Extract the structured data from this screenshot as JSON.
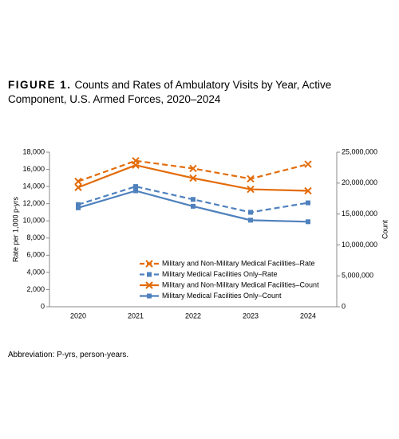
{
  "chart_data": {
    "type": "line",
    "figure_label": "FIGURE 1.",
    "title": "Counts and Rates of Ambulatory Visits by Year, Active Component, U.S. Armed Forces, 2020–2024",
    "note": "Abbreviation: P-yrs, person-years.",
    "y_label": "Rate per 1,000 p-yrs",
    "y2_label": "Count",
    "categories": [
      "2020",
      "2021",
      "2022",
      "2023",
      "2024"
    ],
    "ylim": [
      0,
      18000
    ],
    "yticks": [
      0,
      {
        "value": 2000,
        "label": "2,000"
      },
      {
        "value": 4000,
        "label": "4,000"
      },
      {
        "value": 6000,
        "label": "6,000"
      },
      {
        "value": 8000,
        "label": "8,000"
      },
      {
        "value": 10000,
        "label": "10,000"
      },
      {
        "value": 12000,
        "label": "12,000"
      },
      {
        "value": 14000,
        "label": "14,000"
      },
      {
        "value": 16000,
        "label": "16,000"
      },
      {
        "value": 18000,
        "label": "18,000"
      }
    ],
    "y2lim": [
      0,
      25000000
    ],
    "y2ticks": [
      0,
      {
        "value": 5000000,
        "label": "5,000,000"
      },
      {
        "value": 10000000,
        "label": "10,000,000"
      },
      {
        "value": 15000000,
        "label": "15,000,000"
      },
      {
        "value": 20000000,
        "label": "20,000,000"
      },
      {
        "value": 25000000,
        "label": "25,000,000"
      }
    ],
    "series": [
      {
        "name": "Military and Non-Military Medical Facilities–Rate",
        "color": "#e36c0a",
        "dashed": true,
        "marker": "x",
        "values": [
          14600,
          17000,
          16100,
          14900,
          16600
        ]
      },
      {
        "name": "Military Medical Facilities Only–Rate",
        "color": "#4f81bd",
        "dashed": true,
        "marker": "square",
        "values": [
          11900,
          14000,
          12500,
          11000,
          12100
        ]
      },
      {
        "name": "Military and Non-Military Medical Facilities–Count",
        "color": "#e36c0a",
        "dashed": false,
        "marker": "x",
        "axis": "y2",
        "values": [
          19300000,
          22900000,
          20800000,
          19000000,
          18750000
        ]
      },
      {
        "name": "Military Medical Facilities Only–Count",
        "color": "#4f81bd",
        "dashed": false,
        "marker": "square",
        "axis": "y2",
        "values": [
          16000000,
          18750000,
          16250000,
          14000000,
          13750000
        ]
      }
    ]
  }
}
